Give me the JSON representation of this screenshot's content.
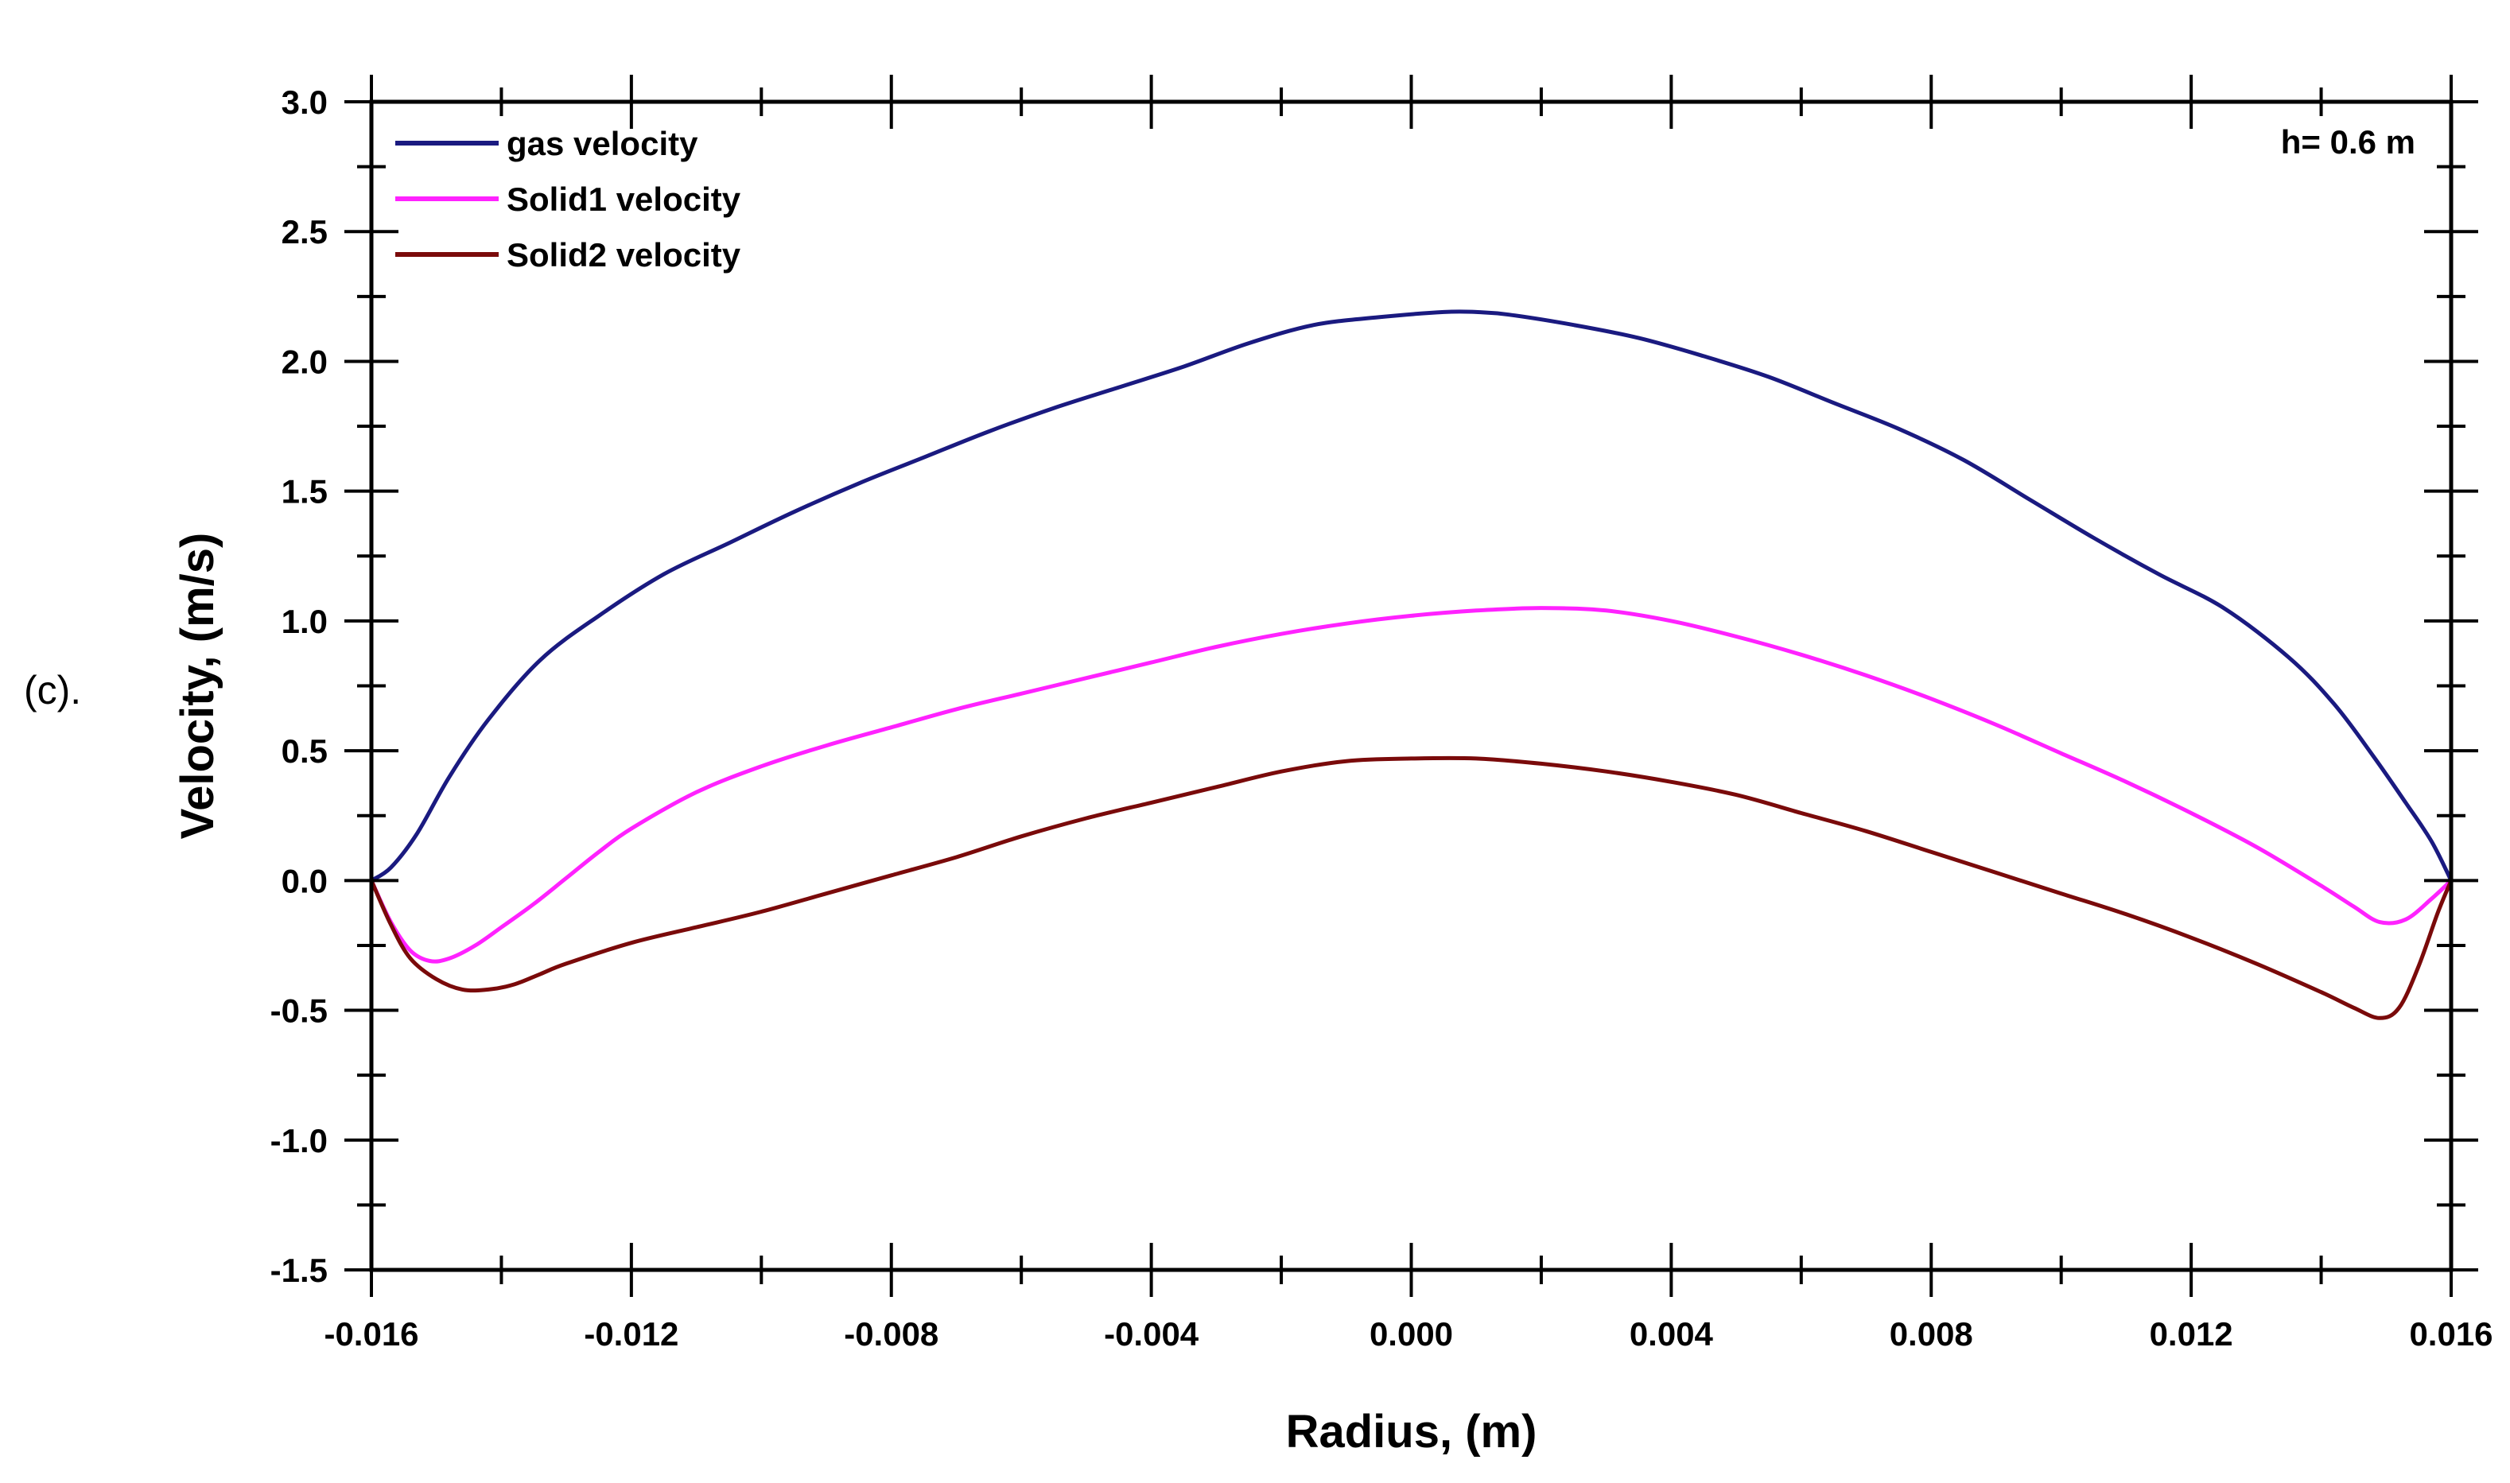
{
  "panel_label": "(c).",
  "chart_data": {
    "type": "line",
    "title": "",
    "annotation": "h= 0.6 m",
    "xlabel": "Radius, (m)",
    "ylabel": "Velocity, (m/s)",
    "xlim": [
      -0.016,
      0.016
    ],
    "ylim": [
      -1.5,
      3.0
    ],
    "xticks": [
      -0.016,
      -0.012,
      -0.008,
      -0.004,
      0.0,
      0.004,
      0.008,
      0.012,
      0.016
    ],
    "xtick_labels": [
      "-0.016",
      "-0.012",
      "-0.008",
      "-0.004",
      "0.000",
      "0.004",
      "0.008",
      "0.012",
      "0.016"
    ],
    "yticks": [
      -1.5,
      -1.0,
      -0.5,
      0.0,
      0.5,
      1.0,
      1.5,
      2.0,
      2.5,
      3.0
    ],
    "ytick_labels": [
      "-1.5",
      "-1.0",
      "-0.5",
      "0.0",
      "0.5",
      "1.0",
      "1.5",
      "2.0",
      "2.5",
      "3.0"
    ],
    "legend_position": "top-left",
    "grid": false,
    "series": [
      {
        "name": "gas velocity",
        "color": "#1a1a80",
        "x": [
          -0.016,
          -0.0157,
          -0.0153,
          -0.0148,
          -0.0142,
          -0.0134,
          -0.0125,
          -0.0115,
          -0.0105,
          -0.0095,
          -0.0085,
          -0.0075,
          -0.0065,
          -0.0055,
          -0.0045,
          -0.0035,
          -0.0025,
          -0.0015,
          -0.0005,
          0.0005,
          0.001,
          0.0015,
          0.0025,
          0.0035,
          0.0045,
          0.0055,
          0.0065,
          0.0075,
          0.0085,
          0.0095,
          0.0105,
          0.0115,
          0.0125,
          0.0135,
          0.0142,
          0.0148,
          0.0153,
          0.0157,
          0.016
        ],
        "y": [
          0.0,
          0.05,
          0.18,
          0.4,
          0.62,
          0.85,
          1.02,
          1.18,
          1.3,
          1.42,
          1.53,
          1.63,
          1.73,
          1.82,
          1.9,
          1.98,
          2.07,
          2.14,
          2.17,
          2.19,
          2.19,
          2.18,
          2.14,
          2.09,
          2.02,
          1.94,
          1.84,
          1.74,
          1.62,
          1.47,
          1.32,
          1.18,
          1.05,
          0.86,
          0.68,
          0.48,
          0.3,
          0.15,
          0.0
        ]
      },
      {
        "name": "Solid1 velocity",
        "color": "#ff22ff",
        "x": [
          -0.016,
          -0.0157,
          -0.0154,
          -0.0151,
          -0.0148,
          -0.0144,
          -0.014,
          -0.0135,
          -0.013,
          -0.0125,
          -0.012,
          -0.011,
          -0.01,
          -0.009,
          -0.008,
          -0.007,
          -0.006,
          -0.005,
          -0.004,
          -0.003,
          -0.002,
          -0.001,
          0.0,
          0.001,
          0.002,
          0.003,
          0.004,
          0.005,
          0.006,
          0.007,
          0.008,
          0.009,
          0.01,
          0.011,
          0.012,
          0.013,
          0.014,
          0.0145,
          0.0149,
          0.0153,
          0.0157,
          0.016
        ],
        "y": [
          0.0,
          -0.16,
          -0.27,
          -0.31,
          -0.3,
          -0.25,
          -0.18,
          -0.09,
          0.01,
          0.11,
          0.2,
          0.34,
          0.44,
          0.52,
          0.59,
          0.66,
          0.72,
          0.78,
          0.84,
          0.9,
          0.95,
          0.99,
          1.02,
          1.04,
          1.05,
          1.04,
          1.0,
          0.94,
          0.87,
          0.79,
          0.7,
          0.6,
          0.49,
          0.38,
          0.26,
          0.13,
          -0.02,
          -0.1,
          -0.16,
          -0.15,
          -0.07,
          0.0
        ]
      },
      {
        "name": "Solid2 velocity",
        "color": "#7a0a0a",
        "x": [
          -0.016,
          -0.0157,
          -0.0154,
          -0.015,
          -0.0146,
          -0.0142,
          -0.0138,
          -0.0134,
          -0.013,
          -0.012,
          -0.011,
          -0.01,
          -0.009,
          -0.008,
          -0.007,
          -0.006,
          -0.005,
          -0.004,
          -0.003,
          -0.002,
          -0.001,
          0.0,
          0.001,
          0.002,
          0.003,
          0.004,
          0.005,
          0.006,
          0.007,
          0.008,
          0.009,
          0.01,
          0.011,
          0.012,
          0.013,
          0.014,
          0.0145,
          0.0149,
          0.0152,
          0.0155,
          0.0158,
          0.016
        ],
        "y": [
          0.0,
          -0.17,
          -0.3,
          -0.38,
          -0.42,
          -0.42,
          -0.4,
          -0.36,
          -0.32,
          -0.24,
          -0.18,
          -0.12,
          -0.05,
          0.02,
          0.09,
          0.17,
          0.24,
          0.3,
          0.36,
          0.42,
          0.46,
          0.47,
          0.47,
          0.45,
          0.42,
          0.38,
          0.33,
          0.26,
          0.19,
          0.11,
          0.03,
          -0.05,
          -0.13,
          -0.22,
          -0.32,
          -0.43,
          -0.49,
          -0.53,
          -0.49,
          -0.33,
          -0.12,
          0.0
        ]
      }
    ]
  }
}
